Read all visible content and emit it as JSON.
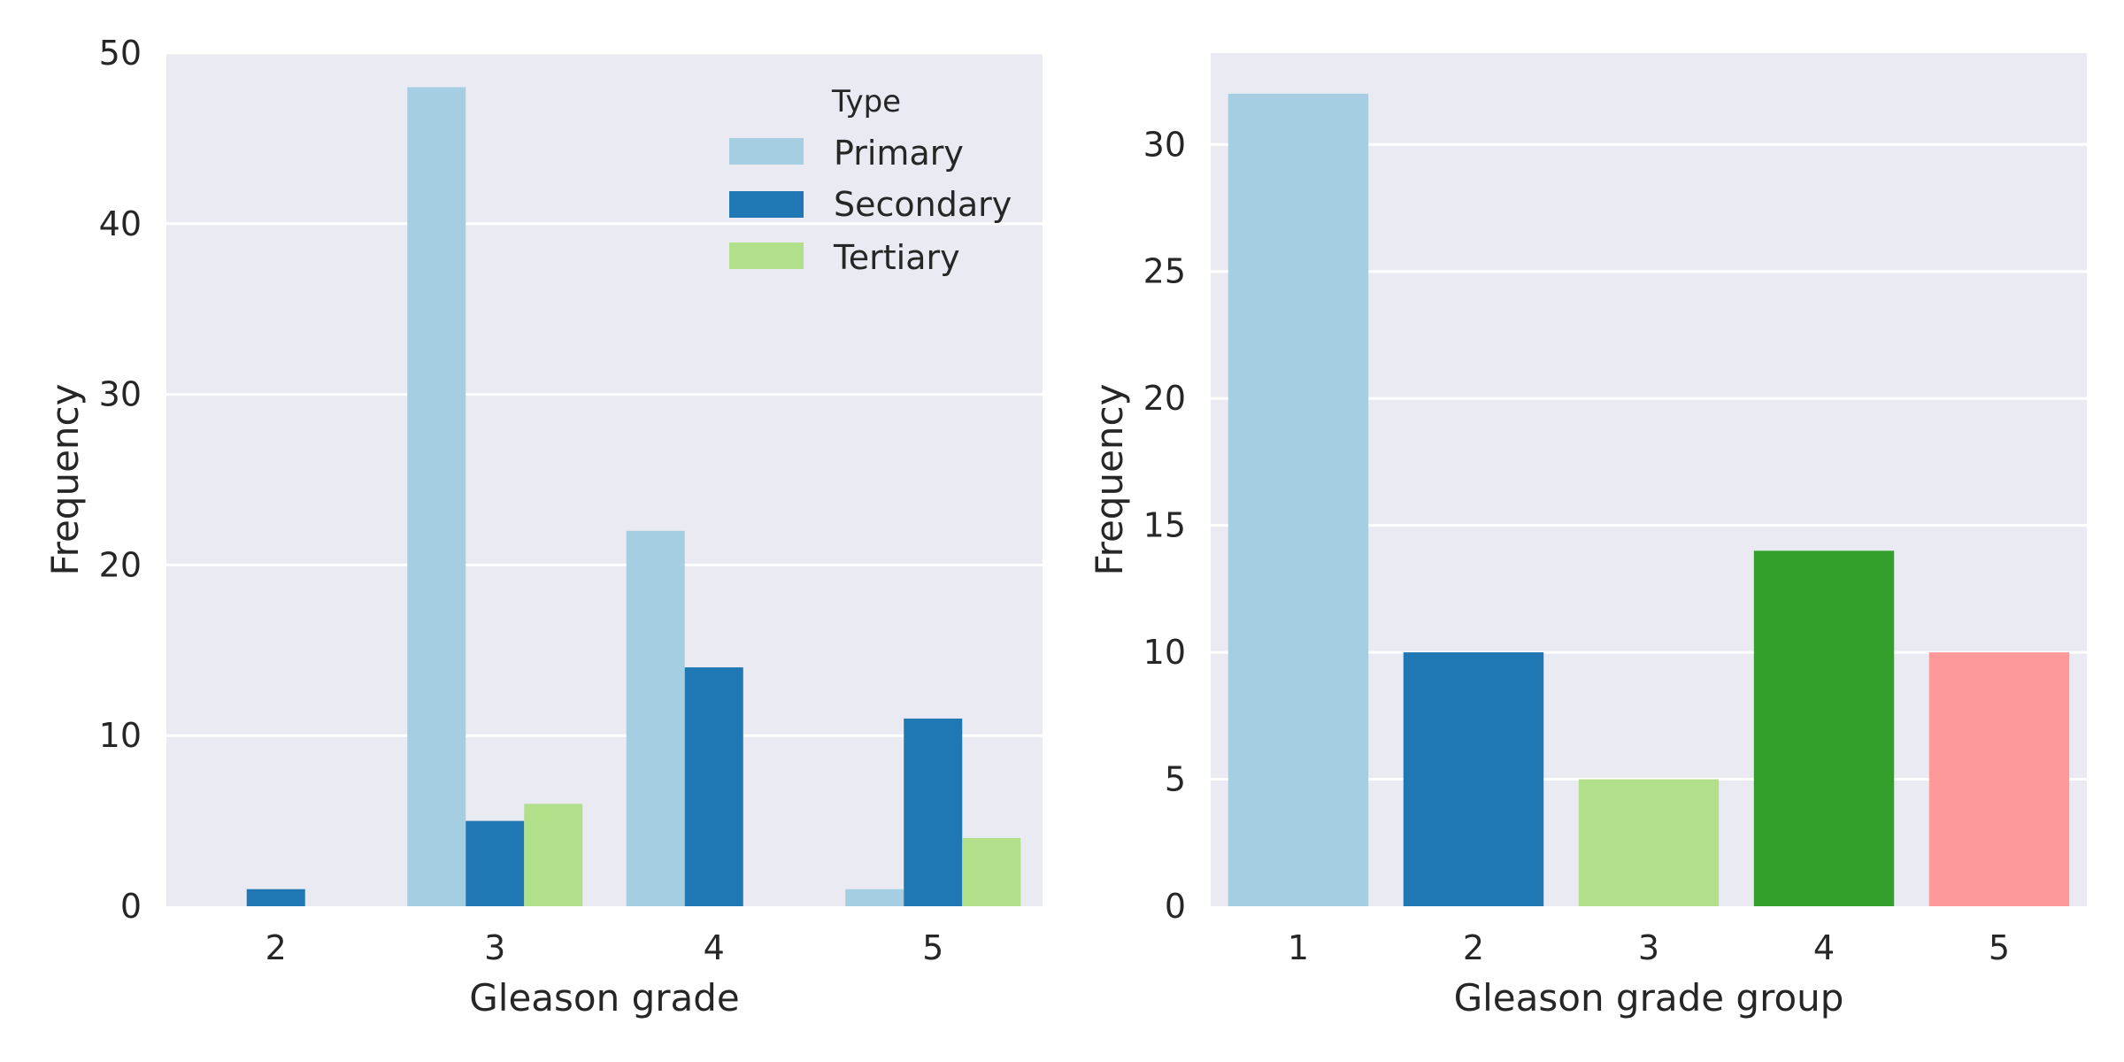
{
  "chart_data": [
    {
      "type": "bar",
      "title": "",
      "xlabel": "Gleason grade",
      "ylabel": "Frequency",
      "categories": [
        "2",
        "3",
        "4",
        "5"
      ],
      "ylim": [
        0,
        50
      ],
      "yticks": [
        0,
        10,
        20,
        30,
        40,
        50
      ],
      "grid": true,
      "legend": {
        "title": "Type",
        "position": "top-right"
      },
      "series": [
        {
          "name": "Primary",
          "color": "#a6cee3",
          "values": [
            0,
            48,
            22,
            1
          ]
        },
        {
          "name": "Secondary",
          "color": "#1f78b4",
          "values": [
            1,
            5,
            14,
            11
          ]
        },
        {
          "name": "Tertiary",
          "color": "#b2df8a",
          "values": [
            0,
            6,
            0,
            4
          ]
        }
      ]
    },
    {
      "type": "bar",
      "title": "",
      "xlabel": "Gleason grade group",
      "ylabel": "Frequency",
      "categories": [
        "1",
        "2",
        "3",
        "4",
        "5"
      ],
      "values": [
        32,
        10,
        5,
        14,
        10
      ],
      "colors": [
        "#a6cee3",
        "#1f78b4",
        "#b2df8a",
        "#33a02c",
        "#fb9a99"
      ],
      "ylim": [
        0,
        33.6
      ],
      "yticks": [
        0,
        5,
        10,
        15,
        20,
        25,
        30
      ],
      "grid": true
    }
  ]
}
